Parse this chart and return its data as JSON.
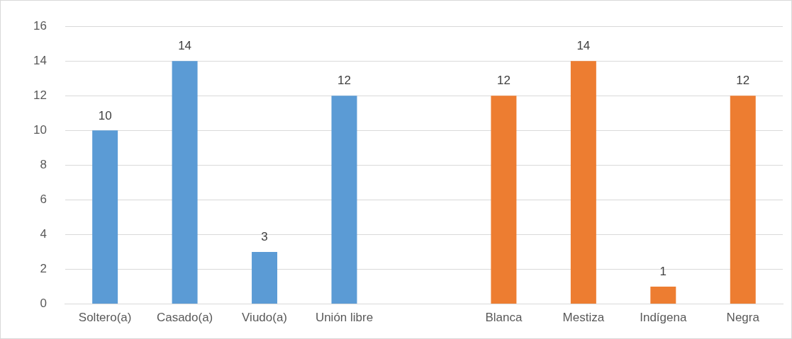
{
  "chart_data": {
    "type": "bar",
    "categories": [
      "Soltero(a)",
      "Casado(a)",
      "Viudo(a)",
      "Unión libre",
      null,
      "Blanca",
      "Mestiza",
      "Indígena",
      "Negra"
    ],
    "values": [
      10,
      14,
      3,
      12,
      null,
      12,
      14,
      1,
      12
    ],
    "colors": [
      "#5b9bd5",
      "#5b9bd5",
      "#5b9bd5",
      "#5b9bd5",
      "#5b9bd5",
      "#ed7d31",
      "#ed7d31",
      "#ed7d31",
      "#ed7d31"
    ],
    "ylim": [
      0,
      16
    ],
    "yticks": [
      0,
      2,
      4,
      6,
      8,
      10,
      12,
      14,
      16
    ],
    "grid": "y",
    "data_labels": true,
    "legend": false
  }
}
